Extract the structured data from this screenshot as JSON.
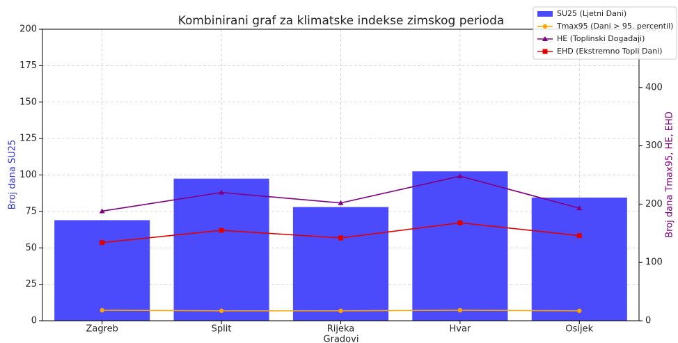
{
  "chart_data": {
    "type": "bar-line",
    "title": "Kombinirani graf za klimatske indekse zimskog perioda",
    "xlabel": "Gradovi",
    "ylabel": "Broj dana SU25",
    "y2label": "Broj dana Tmax95, HE, EHD",
    "categories": [
      "Zagreb",
      "Split",
      "Rijeka",
      "Hvar",
      "Osijek"
    ],
    "series": [
      {
        "name": "SU25 (Ljetni Dani)",
        "type": "bar",
        "color": "#4b4bfb",
        "values": [
          69,
          97.5,
          78,
          102.5,
          84.5
        ]
      },
      {
        "name": "Tmax95 (Dani > 95. percentil)",
        "type": "line",
        "marker": "circle",
        "color": "#ffa500",
        "axis": "y2",
        "values": [
          18,
          17,
          17,
          18,
          17
        ]
      },
      {
        "name": "HE (Toplinski Događaji)",
        "type": "line",
        "marker": "triangle",
        "color": "#800080",
        "axis": "y2",
        "values": [
          188,
          220,
          202,
          248,
          193
        ]
      },
      {
        "name": "EHD (Ekstremno Topli Dani)",
        "type": "line",
        "marker": "square",
        "color": "#e00000",
        "axis": "y2",
        "values": [
          134,
          155,
          142,
          168,
          146
        ]
      }
    ],
    "ylim": [
      0,
      200
    ],
    "yticks": [
      0,
      25,
      50,
      75,
      100,
      125,
      150,
      175,
      200
    ],
    "y2lim": [
      0,
      500
    ],
    "y2ticks": [
      0,
      100,
      200,
      300,
      400,
      500
    ],
    "ylabel_color": "#3333cc",
    "y2label_color": "#800080",
    "grid": true,
    "legend": "upper right"
  }
}
